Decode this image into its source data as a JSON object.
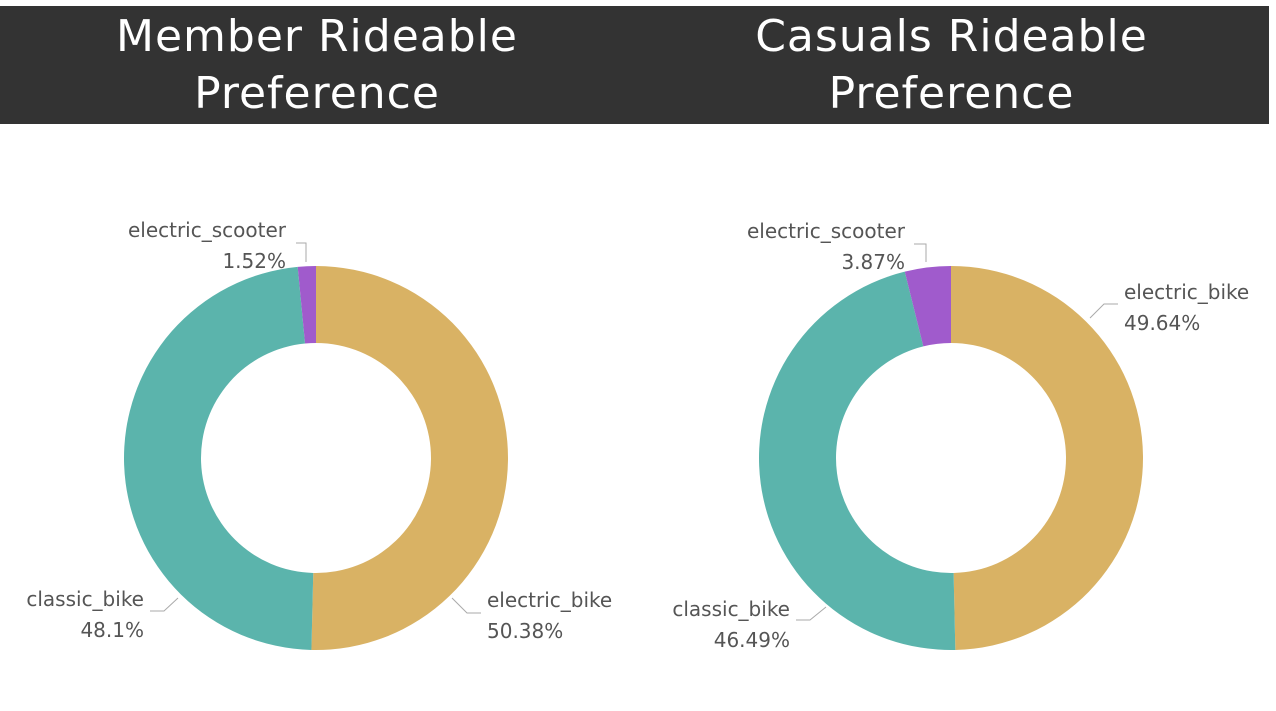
{
  "colors": {
    "header_bg": "#333333",
    "header_text": "#ffffff",
    "electric_bike": "#D9B264",
    "classic_bike": "#5BB4AC",
    "electric_scooter": "#A05BCC",
    "label_text": "#555555",
    "leader_line": "#aaaaaa"
  },
  "chart_data": [
    {
      "type": "pie",
      "donut": true,
      "title": "Member Rideable\nPreference",
      "slices": [
        {
          "label": "electric_bike",
          "value": 50.38,
          "display": "50.38%"
        },
        {
          "label": "classic_bike",
          "value": 48.1,
          "display": "48.1%"
        },
        {
          "label": "electric_scooter",
          "value": 1.52,
          "display": "1.52%"
        }
      ]
    },
    {
      "type": "pie",
      "donut": true,
      "title": "Casuals Rideable\nPreference",
      "slices": [
        {
          "label": "electric_bike",
          "value": 49.64,
          "display": "49.64%"
        },
        {
          "label": "classic_bike",
          "value": 46.49,
          "display": "46.49%"
        },
        {
          "label": "electric_scooter",
          "value": 3.87,
          "display": "3.87%"
        }
      ]
    }
  ]
}
